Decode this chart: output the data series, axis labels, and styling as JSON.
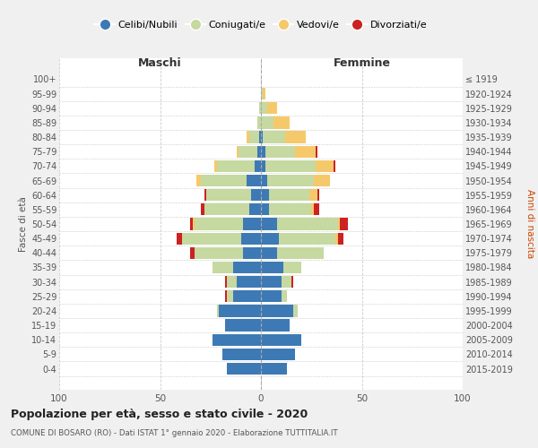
{
  "age_groups": [
    "0-4",
    "5-9",
    "10-14",
    "15-19",
    "20-24",
    "25-29",
    "30-34",
    "35-39",
    "40-44",
    "45-49",
    "50-54",
    "55-59",
    "60-64",
    "65-69",
    "70-74",
    "75-79",
    "80-84",
    "85-89",
    "90-94",
    "95-99",
    "100+"
  ],
  "birth_years": [
    "2015-2019",
    "2010-2014",
    "2005-2009",
    "2000-2004",
    "1995-1999",
    "1990-1994",
    "1985-1989",
    "1980-1984",
    "1975-1979",
    "1970-1974",
    "1965-1969",
    "1960-1964",
    "1955-1959",
    "1950-1954",
    "1945-1949",
    "1940-1944",
    "1935-1939",
    "1930-1934",
    "1925-1929",
    "1920-1924",
    "≤ 1919"
  ],
  "colors": {
    "celibe": "#3d7ab5",
    "coniugato": "#c5d9a0",
    "vedovo": "#f5c96a",
    "divorziato": "#cc2222"
  },
  "maschi": {
    "celibe": [
      17,
      19,
      24,
      18,
      21,
      14,
      12,
      14,
      9,
      10,
      9,
      6,
      5,
      7,
      3,
      2,
      1,
      0,
      0,
      0,
      0
    ],
    "coniugato": [
      0,
      0,
      0,
      0,
      1,
      3,
      5,
      10,
      24,
      29,
      24,
      22,
      22,
      23,
      19,
      9,
      5,
      2,
      1,
      0,
      0
    ],
    "vedovo": [
      0,
      0,
      0,
      0,
      0,
      0,
      0,
      0,
      0,
      0,
      1,
      0,
      0,
      2,
      1,
      1,
      1,
      0,
      0,
      0,
      0
    ],
    "divorziato": [
      0,
      0,
      0,
      0,
      0,
      1,
      1,
      0,
      2,
      3,
      1,
      2,
      1,
      0,
      0,
      0,
      0,
      0,
      0,
      0,
      0
    ]
  },
  "femmine": {
    "celibe": [
      13,
      17,
      20,
      14,
      16,
      10,
      10,
      11,
      8,
      9,
      8,
      4,
      4,
      3,
      2,
      2,
      1,
      0,
      0,
      0,
      0
    ],
    "coniugato": [
      0,
      0,
      0,
      0,
      2,
      3,
      5,
      9,
      23,
      28,
      30,
      21,
      20,
      23,
      25,
      15,
      11,
      6,
      3,
      1,
      0
    ],
    "vedovo": [
      0,
      0,
      0,
      0,
      0,
      0,
      0,
      0,
      0,
      1,
      1,
      1,
      4,
      8,
      9,
      10,
      10,
      8,
      5,
      1,
      0
    ],
    "divorziato": [
      0,
      0,
      0,
      0,
      0,
      0,
      1,
      0,
      0,
      3,
      4,
      3,
      1,
      0,
      1,
      1,
      0,
      0,
      0,
      0,
      0
    ]
  },
  "title": "Popolazione per età, sesso e stato civile - 2020",
  "subtitle": "COMUNE DI BOSARO (RO) - Dati ISTAT 1° gennaio 2020 - Elaborazione TUTTITALIA.IT",
  "xlabel_left": "Maschi",
  "xlabel_right": "Femmine",
  "ylabel_left": "Fasce di età",
  "ylabel_right": "Anni di nascita",
  "xlim": 100,
  "legend_labels": [
    "Celibi/Nubili",
    "Coniugati/e",
    "Vedovi/e",
    "Divorziati/e"
  ],
  "bg_color": "#f0f0f0",
  "plot_bg_color": "#ffffff",
  "grid_color": "#cccccc"
}
